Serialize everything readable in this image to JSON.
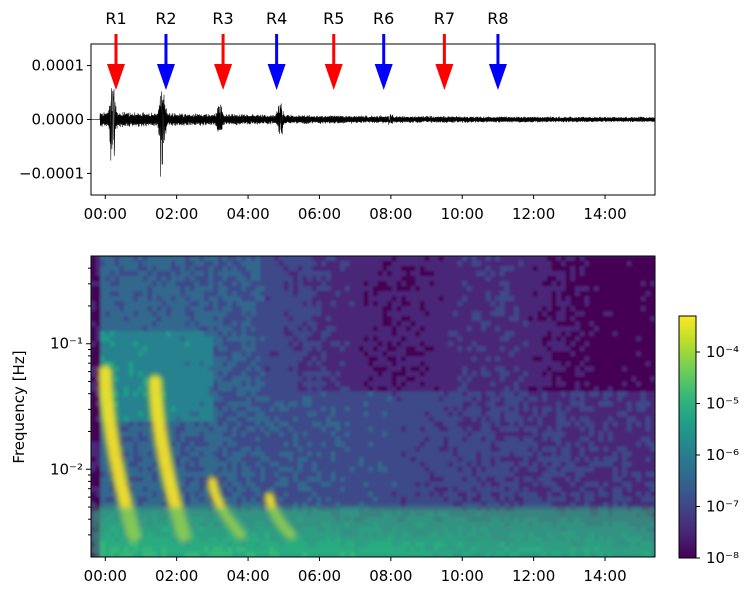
{
  "chart_data": [
    {
      "type": "line",
      "title": "",
      "xlabel": "",
      "ylabel": "",
      "x_tick_labels": [
        "00:00",
        "02:00",
        "04:00",
        "06:00",
        "08:00",
        "10:00",
        "12:00",
        "14:00"
      ],
      "y_tick_labels": [
        "0.0001",
        "0.0000",
        "−0.0001"
      ],
      "xlim_hours": [
        -0.4,
        15.4
      ],
      "ylim": [
        -0.00014,
        0.00014
      ],
      "grid": false,
      "series": [
        {
          "color": "#000000",
          "description_points": [
            {
              "t_hours": 0.2,
              "peak_amplitude": 6e-05,
              "min_amplitude": -9e-05
            },
            {
              "t_hours": 1.6,
              "peak_amplitude": 6e-05,
              "min_amplitude": -0.00013
            },
            {
              "t_hours": 3.2,
              "peak_amplitude": 3e-05,
              "min_amplitude": -2e-05
            },
            {
              "t_hours": 4.9,
              "peak_amplitude": 3e-05,
              "min_amplitude": -3e-05
            },
            {
              "t_hours": 8.0,
              "peak_amplitude": 1e-05,
              "min_amplitude": -1e-05
            },
            {
              "t_hours": 15.0,
              "peak_amplitude": 5e-06,
              "min_amplitude": -5e-06
            }
          ]
        }
      ],
      "arrows": [
        {
          "label": "R1",
          "t_hours": 0.3,
          "color": "#ff0000"
        },
        {
          "label": "R2",
          "t_hours": 1.7,
          "color": "#0000ff"
        },
        {
          "label": "R3",
          "t_hours": 3.3,
          "color": "#ff0000"
        },
        {
          "label": "R4",
          "t_hours": 4.8,
          "color": "#0000ff"
        },
        {
          "label": "R5",
          "t_hours": 6.4,
          "color": "#ff0000"
        },
        {
          "label": "R6",
          "t_hours": 7.8,
          "color": "#0000ff"
        },
        {
          "label": "R7",
          "t_hours": 9.5,
          "color": "#ff0000"
        },
        {
          "label": "R8",
          "t_hours": 11.0,
          "color": "#0000ff"
        }
      ]
    },
    {
      "type": "heatmap",
      "title": "",
      "xlabel": "",
      "ylabel": "Frequency [Hz]",
      "yscale": "log",
      "ylim_hz": [
        0.002,
        0.5
      ],
      "xlim_hours": [
        -0.4,
        15.4
      ],
      "x_tick_labels": [
        "00:00",
        "02:00",
        "04:00",
        "06:00",
        "08:00",
        "10:00",
        "12:00",
        "14:00"
      ],
      "y_tick_labels": [
        "10⁻¹",
        "10⁻²"
      ],
      "colormap": "viridis",
      "colorbar": {
        "scale": "log",
        "range": [
          1e-08,
          0.0005
        ],
        "tick_labels": [
          "10⁻⁴",
          "10⁻⁵",
          "10⁻⁶",
          "10⁻⁷",
          "10⁻⁸"
        ],
        "colors": [
          "#440154",
          "#482878",
          "#3e4989",
          "#31688e",
          "#26828e",
          "#1f9e89",
          "#35b779",
          "#6ece58",
          "#b5de2b",
          "#fde725"
        ]
      },
      "features": [
        {
          "name": "R1 dispersion branch",
          "t_start_hours": 0.0,
          "t_end_hours": 0.8,
          "f_range_hz": [
            0.003,
            0.06
          ],
          "level": "high"
        },
        {
          "name": "R2 dispersion branch",
          "t_start_hours": 1.4,
          "t_end_hours": 2.2,
          "f_range_hz": [
            0.003,
            0.05
          ],
          "level": "high"
        },
        {
          "name": "R3 dispersion branch",
          "t_start_hours": 3.0,
          "t_end_hours": 3.8,
          "f_range_hz": [
            0.003,
            0.008
          ],
          "level": "high"
        },
        {
          "name": "R4 dispersion branch",
          "t_start_hours": 4.6,
          "t_end_hours": 5.2,
          "f_range_hz": [
            0.003,
            0.006
          ],
          "level": "high"
        },
        {
          "name": "low-frequency band",
          "t_start_hours": -0.4,
          "t_end_hours": 15.4,
          "f_range_hz": [
            0.002,
            0.005
          ],
          "level": "medium-high"
        }
      ]
    }
  ]
}
